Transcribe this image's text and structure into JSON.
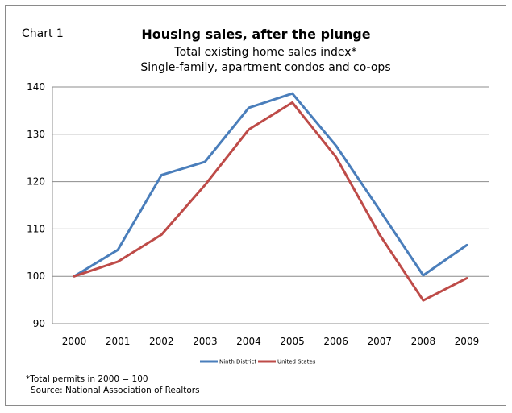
{
  "label": "Chart 1",
  "chart_data": {
    "type": "line",
    "title": "Housing sales, after the plunge",
    "subtitle_lines": [
      "Total existing home sales index*",
      "Single-family, apartment condos and co-ops"
    ],
    "categories": [
      "2000",
      "2001",
      "2002",
      "2003",
      "2004",
      "2005",
      "2006",
      "2007",
      "2008",
      "2009"
    ],
    "series": [
      {
        "name": "Ninth District",
        "color": "#4a7ebb",
        "values": [
          100,
          105.6,
          121.4,
          124.2,
          135.6,
          138.6,
          127.6,
          114.0,
          100.2,
          106.6
        ]
      },
      {
        "name": "United States",
        "color": "#be4b48",
        "values": [
          100,
          103.1,
          108.8,
          119.3,
          131.0,
          136.7,
          125.2,
          108.8,
          94.9,
          99.6
        ]
      }
    ],
    "y_ticks": [
      90,
      100,
      110,
      120,
      130,
      140
    ],
    "ylim": [
      90,
      140
    ],
    "xlabel": "",
    "ylabel": "",
    "grid": true,
    "legend": "bottom"
  },
  "footnotes": [
    "*Total permits in 2000 = 100",
    "Source: National Association of Realtors"
  ]
}
